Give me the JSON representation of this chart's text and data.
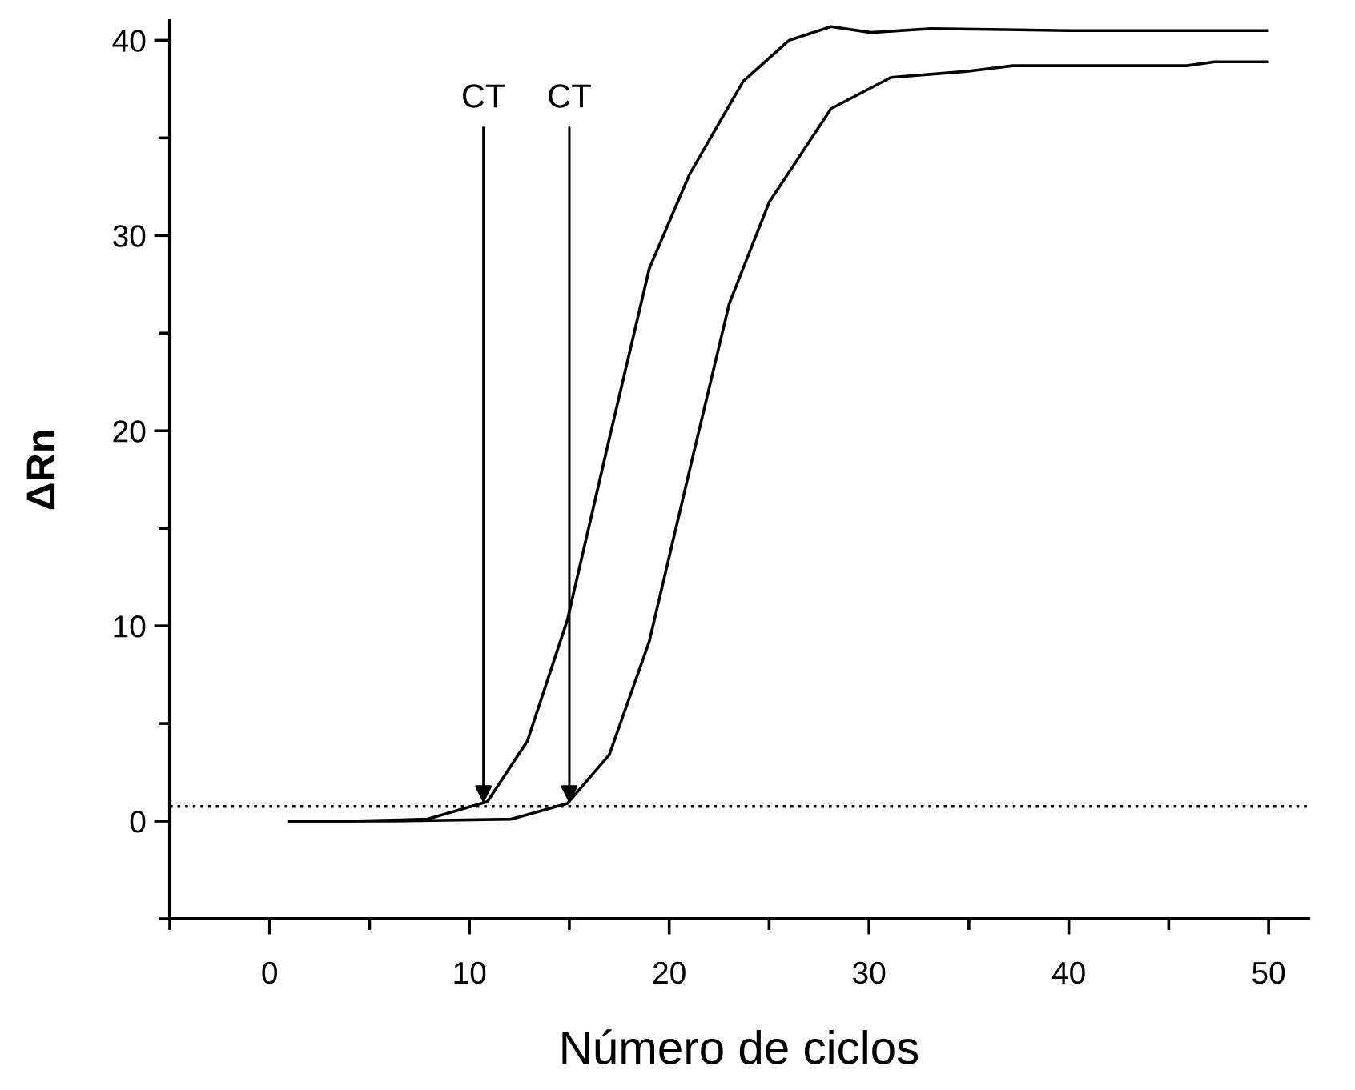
{
  "chart_data": {
    "type": "line",
    "xlabel": "Número de ciclos",
    "ylabel": "ΔRn",
    "xlim": [
      -5,
      52
    ],
    "ylim": [
      -5,
      41
    ],
    "xticks": [
      0,
      10,
      20,
      30,
      40,
      50
    ],
    "yticks": [
      0,
      10,
      20,
      30,
      40
    ],
    "grid": false,
    "marker": "none",
    "line_style": "solid",
    "series": [
      {
        "color": "#000000",
        "x": [
          1,
          4,
          7.9,
          10.9,
          12.9,
          14.9,
          17.0,
          19.0,
          21.0,
          23.7,
          26.0,
          28.1,
          30.1,
          33.1,
          40,
          49.9
        ],
        "values": [
          0,
          0,
          0.1,
          1.0,
          4.1,
          10.3,
          19.6,
          28.3,
          33.1,
          37.9,
          40.0,
          40.7,
          40.4,
          40.6,
          40.5,
          40.5
        ]
      },
      {
        "color": "#000000",
        "x": [
          1,
          6,
          12.1,
          14.9,
          17.0,
          19.0,
          21.0,
          23.0,
          25.0,
          28.1,
          31.1,
          34.8,
          37.2,
          45.9,
          47.3,
          49.9
        ],
        "values": [
          0,
          0,
          0.1,
          0.9,
          3.4,
          9.2,
          17.9,
          26.5,
          31.7,
          36.5,
          38.1,
          38.4,
          38.7,
          38.7,
          38.9,
          38.9
        ]
      }
    ],
    "ref_lines": [
      {
        "axis": "y",
        "value": 0.75,
        "line_style": "dotted",
        "color": "#000000"
      }
    ],
    "annotations": [
      {
        "text": "CT",
        "x": 10.7,
        "y": 0.9
      },
      {
        "text": "CT",
        "x": 15.0,
        "y": 0.9
      }
    ]
  }
}
